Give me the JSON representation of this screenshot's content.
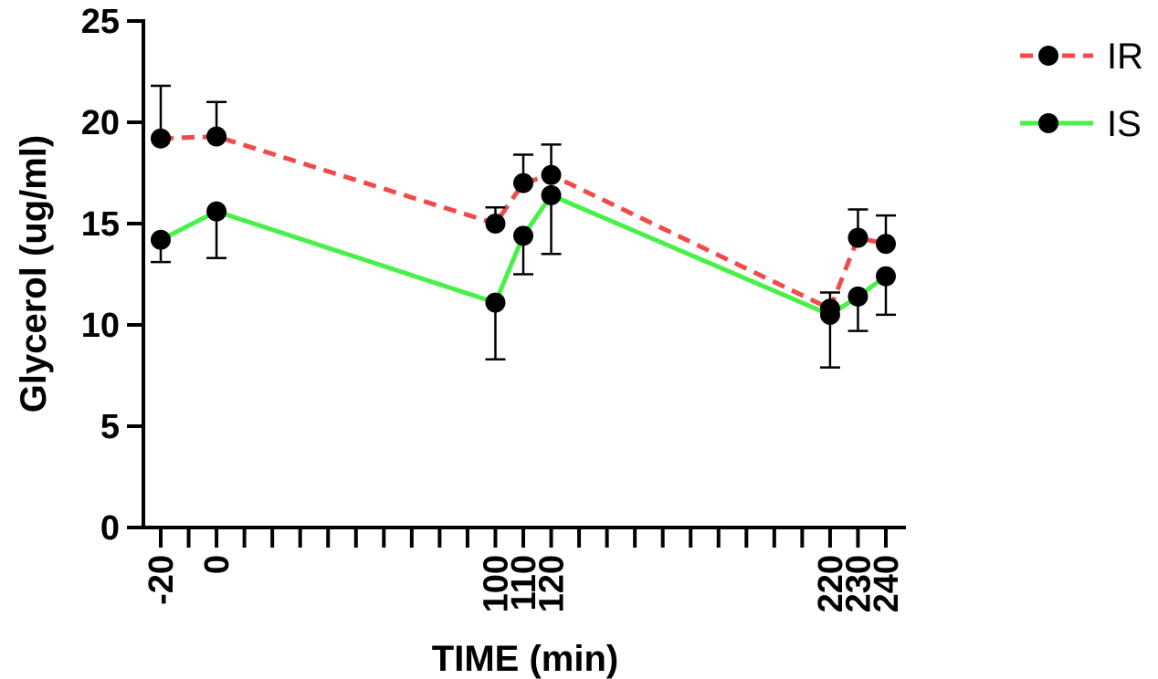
{
  "chart_data": {
    "type": "line",
    "xlabel": "TIME (min)",
    "ylabel": "Glycerol (ug/ml)",
    "xlim": [
      -25,
      250
    ],
    "ylim": [
      0,
      25
    ],
    "y_ticks": [
      0,
      5,
      10,
      15,
      20,
      25
    ],
    "x_tick_labels": [
      -20,
      0,
      100,
      110,
      120,
      220,
      230,
      240
    ],
    "x_minor_tick_step": 10,
    "grid": false,
    "legend_position": "top-right",
    "x": [
      -20,
      0,
      100,
      110,
      120,
      220,
      230,
      240
    ],
    "series": [
      {
        "name": "IR",
        "color": "#f24a4a",
        "line_style": "dashed",
        "values": [
          19.2,
          19.3,
          15.0,
          17.0,
          17.4,
          10.8,
          14.3,
          14.0
        ],
        "error_upper": [
          21.8,
          21.0,
          15.8,
          18.4,
          18.9,
          11.6,
          15.7,
          15.4
        ],
        "error_lower": [
          null,
          null,
          null,
          null,
          null,
          null,
          null,
          null
        ]
      },
      {
        "name": "IS",
        "color": "#48f048",
        "line_style": "solid",
        "values": [
          14.2,
          15.6,
          11.1,
          14.4,
          16.4,
          10.5,
          11.4,
          12.4
        ],
        "error_upper": [
          null,
          null,
          null,
          null,
          null,
          null,
          null,
          null
        ],
        "error_lower": [
          13.1,
          13.3,
          8.3,
          12.5,
          13.5,
          7.9,
          9.7,
          10.5
        ]
      }
    ],
    "marker_color": "#000000"
  }
}
